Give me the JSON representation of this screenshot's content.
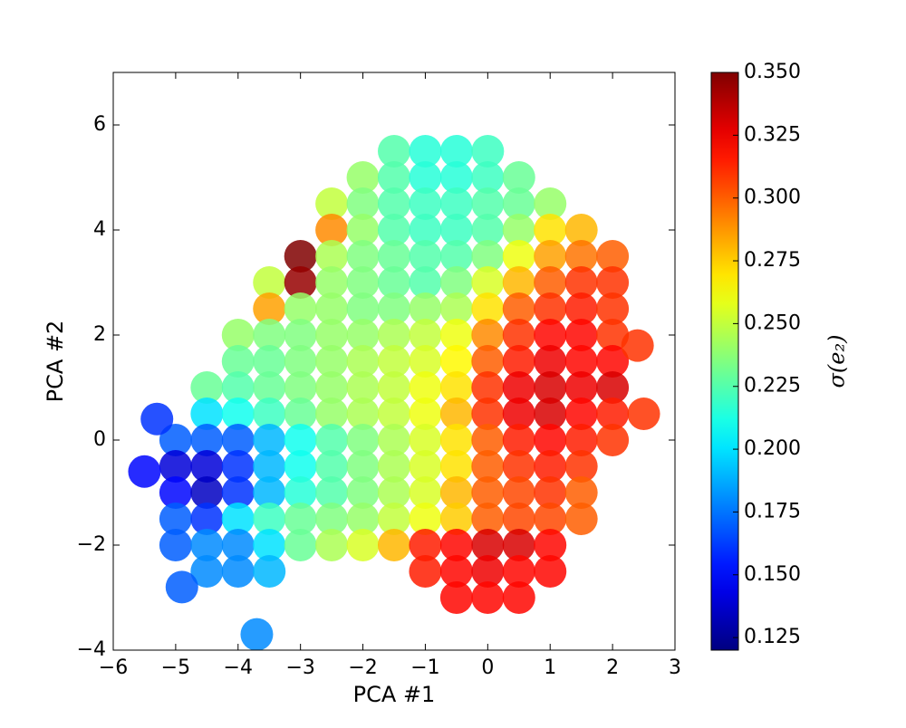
{
  "chart_data": {
    "type": "scatter",
    "xlabel": "PCA #1",
    "ylabel": "PCA #2",
    "colorbar_label": "σ(e₂)",
    "colormap": "jet",
    "xlim": [
      -6,
      3
    ],
    "ylim": [
      -4,
      7
    ],
    "xticks": [
      {
        "value": -6,
        "label": "−6"
      },
      {
        "value": -5,
        "label": "−5"
      },
      {
        "value": -4,
        "label": "−4"
      },
      {
        "value": -3,
        "label": "−3"
      },
      {
        "value": -2,
        "label": "−2"
      },
      {
        "value": -1,
        "label": "−1"
      },
      0,
      1,
      2,
      3
    ],
    "yticks": [
      {
        "value": -4,
        "label": "−4"
      },
      {
        "value": -2,
        "label": "−2"
      },
      0,
      2,
      4,
      6
    ],
    "clim": [
      0.12,
      0.35
    ],
    "cticks": [
      0.125,
      {
        "value": 0.15,
        "label": "0.150"
      },
      0.175,
      {
        "value": 0.2,
        "label": "0.200"
      },
      0.225,
      {
        "value": 0.25,
        "label": "0.250"
      },
      0.275,
      {
        "value": 0.3,
        "label": "0.300"
      },
      0.325,
      {
        "value": 0.35,
        "label": "0.350"
      }
    ],
    "x": [
      -1.5,
      -1,
      -0.5,
      0,
      -2,
      -1.5,
      -1,
      -0.5,
      0,
      0.5,
      -2.5,
      -2,
      -1.5,
      -1,
      -0.5,
      0,
      0.5,
      1,
      -2.5,
      -2,
      -1.5,
      -1,
      -0.5,
      0,
      0.5,
      1,
      1.5,
      -3,
      -2.5,
      -2,
      -1.5,
      -1,
      -0.5,
      0,
      0.5,
      1,
      1.5,
      2,
      -3.5,
      -3,
      -2.5,
      -2,
      -1.5,
      -1,
      -0.5,
      0,
      0.5,
      1,
      1.5,
      2,
      -3.5,
      -3,
      -2.5,
      -2,
      -1.5,
      -1,
      -0.5,
      0,
      0.5,
      1,
      1.5,
      2,
      -4,
      -3.5,
      -3,
      -2.5,
      -2,
      -1.5,
      -1,
      -0.5,
      0,
      0.5,
      1,
      1.5,
      2,
      -4,
      -3.5,
      -3,
      -2.5,
      -2,
      -1.5,
      -1,
      -0.5,
      0,
      0.5,
      1,
      1.5,
      2,
      -4.5,
      -4,
      -3.5,
      -3,
      -2.5,
      -2,
      -1.5,
      -1,
      -0.5,
      0,
      0.5,
      1,
      1.5,
      2,
      -4.5,
      -4,
      -3.5,
      -3,
      -2.5,
      -2,
      -1.5,
      -1,
      -0.5,
      0,
      0.5,
      1,
      1.5,
      2,
      -5,
      -4.5,
      -4,
      -3.5,
      -3,
      -2.5,
      -2,
      -1.5,
      -1,
      -0.5,
      0,
      0.5,
      1,
      1.5,
      2,
      -5,
      -4.5,
      -4,
      -3.5,
      -3,
      -2.5,
      -2,
      -1.5,
      -1,
      -0.5,
      0,
      0.5,
      1,
      1.5,
      -5,
      -4.5,
      -4,
      -3.5,
      -3,
      -2.5,
      -2,
      -1.5,
      -1,
      -0.5,
      0,
      0.5,
      1,
      1.5,
      -5,
      -4.5,
      -4,
      -3.5,
      -3,
      -2.5,
      -2,
      -1.5,
      -1,
      -0.5,
      0,
      0.5,
      1,
      1.5,
      -5,
      -4.5,
      -4,
      -3.5,
      -3,
      -2.5,
      -2,
      -1.5,
      -1,
      -0.5,
      0,
      0.5,
      1,
      -4.5,
      -4,
      -3.5,
      -1,
      -0.5,
      0,
      0.5,
      1,
      -0.5,
      0,
      0.5,
      -5.5,
      -4.9,
      -3.7,
      2.5,
      2.4,
      -5.3
    ],
    "values": [
      5.5,
      5.5,
      5.5,
      5.5,
      5,
      5,
      5,
      5,
      5,
      5,
      4.5,
      4.5,
      4.5,
      4.5,
      4.5,
      4.5,
      4.5,
      4.5,
      4,
      4,
      4,
      4,
      4,
      4,
      4,
      4,
      4,
      3.5,
      3.5,
      3.5,
      3.5,
      3.5,
      3.5,
      3.5,
      3.5,
      3.5,
      3.5,
      3.5,
      3,
      3,
      3,
      3,
      3,
      3,
      3,
      3,
      3,
      3,
      3,
      3,
      2.5,
      2.5,
      2.5,
      2.5,
      2.5,
      2.5,
      2.5,
      2.5,
      2.5,
      2.5,
      2.5,
      2.5,
      2,
      2,
      2,
      2,
      2,
      2,
      2,
      2,
      2,
      2,
      2,
      2,
      2,
      1.5,
      1.5,
      1.5,
      1.5,
      1.5,
      1.5,
      1.5,
      1.5,
      1.5,
      1.5,
      1.5,
      1.5,
      1.5,
      1,
      1,
      1,
      1,
      1,
      1,
      1,
      1,
      1,
      1,
      1,
      1,
      1,
      1,
      0.5,
      0.5,
      0.5,
      0.5,
      0.5,
      0.5,
      0.5,
      0.5,
      0.5,
      0.5,
      0.5,
      0.5,
      0.5,
      0.5,
      0,
      0,
      0,
      0,
      0,
      0,
      0,
      0,
      0,
      0,
      0,
      0,
      0,
      0,
      0,
      -0.5,
      -0.5,
      -0.5,
      -0.5,
      -0.5,
      -0.5,
      -0.5,
      -0.5,
      -0.5,
      -0.5,
      -0.5,
      -0.5,
      -0.5,
      -0.5,
      -1,
      -1,
      -1,
      -1,
      -1,
      -1,
      -1,
      -1,
      -1,
      -1,
      -1,
      -1,
      -1,
      -1,
      -1.5,
      -1.5,
      -1.5,
      -1.5,
      -1.5,
      -1.5,
      -1.5,
      -1.5,
      -1.5,
      -1.5,
      -1.5,
      -1.5,
      -1.5,
      -1.5,
      -2,
      -2,
      -2,
      -2,
      -2,
      -2,
      -2,
      -2,
      -2,
      -2,
      -2,
      -2,
      -2,
      -2.5,
      -2.5,
      -2.5,
      -2.5,
      -2.5,
      -2.5,
      -2.5,
      -2.5,
      -3,
      -3,
      -3,
      -0.6,
      -2.8,
      -3.7,
      0.5,
      1.8,
      0.4
    ],
    "c": [
      0.225,
      0.215,
      0.215,
      0.22,
      0.24,
      0.225,
      0.215,
      0.215,
      0.22,
      0.23,
      0.25,
      0.235,
      0.225,
      0.22,
      0.22,
      0.225,
      0.23,
      0.24,
      0.29,
      0.24,
      0.225,
      0.22,
      0.22,
      0.225,
      0.24,
      0.27,
      0.28,
      0.35,
      0.245,
      0.235,
      0.23,
      0.225,
      0.225,
      0.235,
      0.26,
      0.285,
      0.295,
      0.3,
      0.25,
      0.345,
      0.24,
      0.235,
      0.23,
      0.225,
      0.235,
      0.255,
      0.28,
      0.3,
      0.31,
      0.31,
      0.285,
      0.24,
      0.24,
      0.235,
      0.235,
      0.24,
      0.245,
      0.27,
      0.3,
      0.31,
      0.315,
      0.31,
      0.24,
      0.235,
      0.235,
      0.24,
      0.24,
      0.245,
      0.25,
      0.26,
      0.29,
      0.31,
      0.32,
      0.32,
      0.31,
      0.23,
      0.23,
      0.235,
      0.24,
      0.245,
      0.25,
      0.255,
      0.265,
      0.3,
      0.315,
      0.325,
      0.32,
      0.32,
      0.23,
      0.225,
      0.23,
      0.235,
      0.24,
      0.245,
      0.25,
      0.26,
      0.27,
      0.31,
      0.325,
      0.33,
      0.325,
      0.33,
      0.2,
      0.21,
      0.22,
      0.23,
      0.24,
      0.245,
      0.25,
      0.26,
      0.28,
      0.31,
      0.325,
      0.33,
      0.32,
      0.315,
      0.17,
      0.17,
      0.17,
      0.19,
      0.21,
      0.225,
      0.235,
      0.245,
      0.255,
      0.27,
      0.3,
      0.315,
      0.32,
      0.315,
      0.31,
      0.14,
      0.14,
      0.16,
      0.19,
      0.21,
      0.225,
      0.235,
      0.245,
      0.255,
      0.27,
      0.3,
      0.31,
      0.315,
      0.31,
      0.15,
      0.135,
      0.16,
      0.19,
      0.215,
      0.225,
      0.235,
      0.245,
      0.255,
      0.28,
      0.3,
      0.305,
      0.31,
      0.3,
      0.17,
      0.16,
      0.2,
      0.22,
      0.23,
      0.235,
      0.24,
      0.25,
      0.26,
      0.275,
      0.3,
      0.305,
      0.305,
      0.3,
      0.17,
      0.18,
      0.18,
      0.2,
      0.23,
      0.245,
      0.255,
      0.28,
      0.315,
      0.32,
      0.33,
      0.33,
      0.32,
      0.18,
      0.18,
      0.19,
      0.315,
      0.32,
      0.325,
      0.32,
      0.32,
      0.32,
      0.32,
      0.32,
      0.15,
      0.17,
      0.18,
      0.31,
      0.31,
      0.16
    ]
  }
}
